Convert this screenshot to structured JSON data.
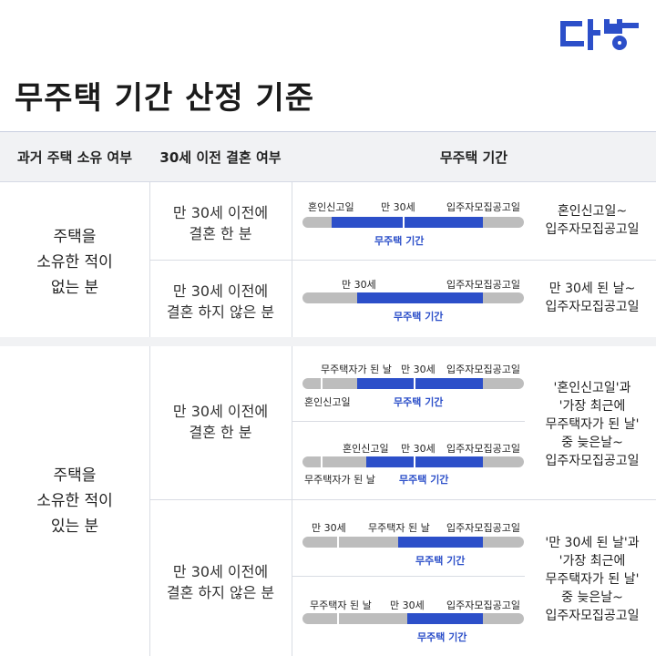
{
  "brand": "다방",
  "title": "무주택 기간 산정 기준",
  "header": {
    "col1": "과거 주택 소유 여부",
    "col2": "30세 이전 결혼 여부",
    "col3": "무주택 기간"
  },
  "section1": {
    "ownership": [
      "주택을",
      "소유한 적이",
      "없는 분"
    ],
    "row1": {
      "marriage": [
        "만 30세 이전에",
        "결혼 한 분"
      ],
      "top_labels": [
        "혼인신고일",
        "만 30세",
        "입주자모집공고일"
      ],
      "bottom_label": "무주택 기간",
      "result": [
        "혼인신고일~",
        "입주자모집공고일"
      ]
    },
    "row2": {
      "marriage": [
        "만 30세 이전에",
        "결혼 하지 않은 분"
      ],
      "top_labels": [
        "만 30세",
        "입주자모집공고일"
      ],
      "bottom_label": "무주택 기간",
      "result": [
        "만 30세 된 날~",
        "입주자모집공고일"
      ]
    }
  },
  "section2": {
    "ownership": [
      "주택을",
      "소유한 적이",
      "있는 분"
    ],
    "row1": {
      "marriage": [
        "만 30세 이전에",
        "결혼 한 분"
      ],
      "bar1": {
        "top_labels": [
          "무주택자가 된 날",
          "만 30세",
          "입주자모집공고일"
        ],
        "bottom_left": "혼인신고일",
        "bottom_label": "무주택 기간"
      },
      "bar2": {
        "top_labels": [
          "혼인신고일",
          "만 30세",
          "입주자모집공고일"
        ],
        "bottom_left": "무주택자가 된 날",
        "bottom_label": "무주택 기간"
      },
      "result": [
        "'혼인신고일'과",
        "'가장 최근에",
        "무주택자가 된 날'",
        "중 늦은날~",
        "입주자모집공고일"
      ]
    },
    "row2": {
      "marriage": [
        "만 30세 이전에",
        "결혼 하지 않은 분"
      ],
      "bar1": {
        "top_labels": [
          "만 30세",
          "무주택자 된 날",
          "입주자모집공고일"
        ],
        "bottom_label": "무주택 기간"
      },
      "bar2": {
        "top_labels": [
          "무주택자 된 날",
          "만 30세",
          "입주자모집공고일"
        ],
        "bottom_label": "무주택 기간"
      },
      "result": [
        "'만 30세 된 날'과",
        "'가장 최근에",
        "무주택자가 된 날'",
        "중 늦은날~",
        "입주자모집공고일"
      ]
    }
  },
  "colors": {
    "accent": "#2c4fc9",
    "bar": "#bdbdbd",
    "header_bg": "#f1f2f4"
  }
}
